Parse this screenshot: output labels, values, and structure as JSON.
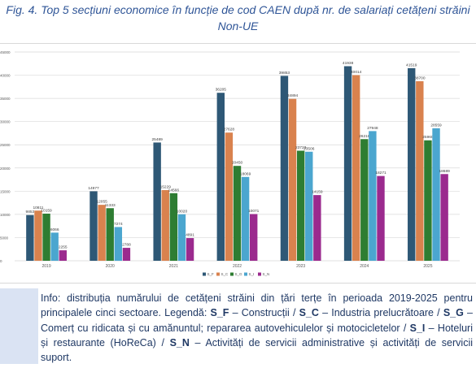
{
  "title": {
    "line1": "Fig. 4. Top 5 secțiuni economice în funcție de cod CAEN după nr. de salariați cetățeni străini",
    "line2": "Non-UE"
  },
  "chart_data": {
    "type": "bar",
    "categories": [
      "2019",
      "2020",
      "2021",
      "2022",
      "2023",
      "2024",
      "2025"
    ],
    "series": [
      {
        "name": "S_F",
        "color": "#2e5876",
        "values": [
          9853,
          14977,
          25489,
          36205,
          39853,
          41938,
          41519
        ]
      },
      {
        "name": "S_C",
        "color": "#d9824e",
        "values": [
          10811,
          12055,
          15229,
          27628,
          34894,
          40014,
          38700
        ]
      },
      {
        "name": "S_G",
        "color": "#2e7d32",
        "values": [
          10159,
          11333,
          14566,
          20450,
          23723,
          26218,
          25960
        ]
      },
      {
        "name": "S_I",
        "color": "#4ba6cf",
        "values": [
          6066,
          7274,
          10020,
          18069,
          23506,
          27948,
          28559
        ]
      },
      {
        "name": "S_N",
        "color": "#9b2a8e",
        "values": [
          2255,
          2788,
          4891,
          10071,
          14159,
          18271,
          18689
        ]
      }
    ],
    "ylim": [
      0,
      45000
    ],
    "yticks": [
      0,
      5000,
      10000,
      15000,
      20000,
      25000,
      30000,
      35000,
      40000,
      45000
    ],
    "ytick_labels": [
      "0",
      "5000",
      "10000",
      "15000",
      "20000",
      "25000",
      "30000",
      "35000",
      "40000",
      "45000"
    ],
    "grid": true,
    "legend_position": "bottom"
  },
  "info": {
    "intro": "Info: distribuția numărului de cetățeni străini din țări terțe în perioada 2019-2025 pentru principalele cinci sectoare. Legendă: ",
    "items": [
      {
        "code": "S_F",
        "text": " – Construcții  / "
      },
      {
        "code": "S_C",
        "text": " – Industria prelucrătoare / "
      },
      {
        "code": "S_G",
        "text": " – Comerț cu ridicata și cu amănuntul; repararea autovehiculelor și motocicletelor / "
      },
      {
        "code": "S_I",
        "text": " – Hoteluri și restaurante (HoReCa) / "
      },
      {
        "code": "S_N",
        "text": " – Activități de servicii administrative și activități de servicii suport."
      }
    ]
  }
}
